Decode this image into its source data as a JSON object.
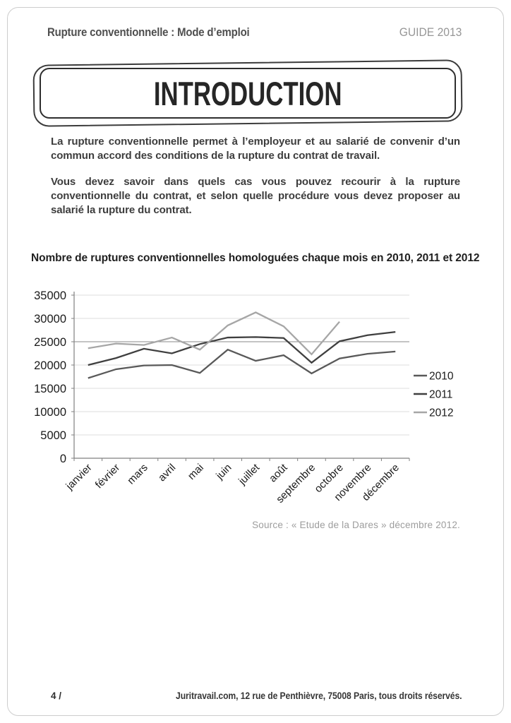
{
  "page": {
    "header": {
      "title": "Rupture conventionnelle : Mode d’emploi",
      "guide": "GUIDE 2013"
    },
    "intro": {
      "title": "INTRODUCTION",
      "paragraphs": [
        "La rupture conventionnelle permet à l’employeur et au salarié de convenir d’un commun accord des conditions de la rupture du contrat de travail.",
        "Vous devez savoir dans quels cas vous pouvez recourir à la rupture conventionnelle du contrat, et selon quelle procédure vous devez proposer au salarié la rupture du contrat."
      ]
    },
    "chart_heading": "Nombre de ruptures conventionnelles homologuées chaque mois en 2010, 2011 et 2012",
    "source": "Source : « Etude de la Dares » décembre 2012.",
    "footer": {
      "page_number": "4 /",
      "address": "Juritravail.com, 12 rue de Penthièvre, 75008 Paris, tous droits réservés."
    }
  },
  "chart_data": {
    "type": "line",
    "title": "Nombre de ruptures conventionnelles homologuées chaque mois en 2010, 2011 et 2012",
    "categories": [
      "janvier",
      "février",
      "mars",
      "avril",
      "mai",
      "juin",
      "juillet",
      "août",
      "septembre",
      "octobre",
      "novembre",
      "décembre"
    ],
    "series": [
      {
        "name": "2010",
        "color": "#595959",
        "values": [
          17200,
          19100,
          19900,
          20000,
          18300,
          23300,
          20900,
          22100,
          18200,
          21400,
          22400,
          22900
        ]
      },
      {
        "name": "2011",
        "color": "#3f3f3f",
        "values": [
          20000,
          21500,
          23500,
          22500,
          24500,
          25900,
          26000,
          25800,
          20500,
          25100,
          26400,
          27100
        ]
      },
      {
        "name": "2012",
        "color": "#a6a6a6",
        "values": [
          23600,
          24600,
          24300,
          25900,
          23300,
          28500,
          31300,
          28300,
          22300,
          29300,
          null,
          null
        ]
      }
    ],
    "ylim": [
      0,
      35000
    ],
    "ytick_step": 5000,
    "grid": "horizontal",
    "gridline_color": "#dcdcdc",
    "dark_gridline_at": 25000,
    "axis_color": "#808080",
    "tick_label_color": "#1a1a1a",
    "legend_position": "right"
  }
}
